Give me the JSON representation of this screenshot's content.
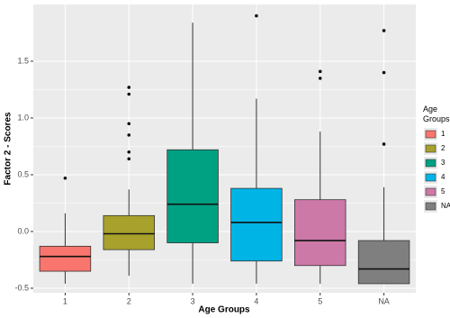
{
  "chart_data": {
    "type": "boxplot",
    "x_label": "Age Groups",
    "y_label": "Factor 2 - Scores",
    "categories": [
      "1",
      "2",
      "3",
      "4",
      "5",
      "NA"
    ],
    "colors": [
      "#F8766D",
      "#A8A22C",
      "#00A083",
      "#00B4E6",
      "#CC79A7",
      "#7F7F7F"
    ],
    "boxes": [
      {
        "min": -0.46,
        "q1": -0.35,
        "median": -0.22,
        "q3": -0.13,
        "max": 0.16,
        "outliers": [
          0.47
        ]
      },
      {
        "min": -0.39,
        "q1": -0.16,
        "median": -0.02,
        "q3": 0.14,
        "max": 0.37,
        "outliers": [
          1.27,
          1.21,
          0.95,
          0.85,
          0.7,
          0.64
        ]
      },
      {
        "min": -0.46,
        "q1": -0.1,
        "median": 0.24,
        "q3": 0.72,
        "max": 1.84,
        "outliers": []
      },
      {
        "min": -0.46,
        "q1": -0.26,
        "median": 0.08,
        "q3": 0.38,
        "max": 1.17,
        "outliers": [
          1.9
        ]
      },
      {
        "min": -0.46,
        "q1": -0.3,
        "median": -0.08,
        "q3": 0.28,
        "max": 0.88,
        "outliers": [
          1.41,
          1.35
        ]
      },
      {
        "min": -0.46,
        "q1": -0.46,
        "median": -0.33,
        "q3": -0.08,
        "max": 0.39,
        "outliers": [
          1.77,
          1.4,
          0.77
        ]
      }
    ],
    "ylim": [
      -0.54,
      2.0
    ],
    "yticks": [
      -0.5,
      {
        "value": 0,
        "label": "0.0"
      },
      0.5,
      {
        "value": 1,
        "label": "1.0"
      },
      1.5
    ],
    "grid": true,
    "legend": {
      "title": "Age Groups",
      "position": "right"
    }
  }
}
